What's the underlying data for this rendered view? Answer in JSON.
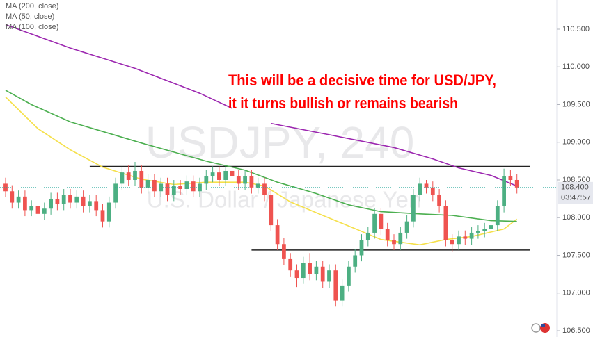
{
  "chart_data": {
    "type": "candlestick",
    "watermark_title": "USDJPY, 240",
    "watermark_subtitle": "U.S. Dollar / Japanese Yen",
    "annotation": [
      "This will be a decisive time for USD/JPY,",
      "it it turns bullish or remains bearish"
    ],
    "ylim": [
      106.417,
      110.887
    ],
    "yticks": [
      {
        "value": 106.5,
        "label": "106.500"
      },
      {
        "value": 107.0,
        "label": "107.000"
      },
      {
        "value": 107.5,
        "label": "107.500"
      },
      {
        "value": 108.0,
        "label": "108.000"
      },
      {
        "value": 108.5,
        "label": "108.500"
      },
      {
        "value": 109.0,
        "label": "109.000"
      },
      {
        "value": 109.5,
        "label": "109.500"
      },
      {
        "value": 110.0,
        "label": "110.000"
      },
      {
        "value": 110.5,
        "label": "110.500"
      }
    ],
    "grid": false,
    "up_color": "#4caf82",
    "down_color": "#ef5350",
    "candles": {
      "open": [
        108.45,
        108.35,
        108.2,
        108.28,
        108.1,
        108.15,
        108.05,
        108.12,
        108.25,
        108.18,
        108.3,
        108.2,
        108.28,
        108.15,
        108.22,
        108.1,
        107.95,
        108.2,
        108.45,
        108.6,
        108.5,
        108.62,
        108.4,
        108.5,
        108.35,
        108.45,
        108.3,
        108.42,
        108.38,
        108.48,
        108.35,
        108.45,
        108.55,
        108.6,
        108.5,
        108.62,
        108.55,
        108.45,
        108.55,
        108.4,
        108.45,
        108.3,
        107.9,
        107.65,
        107.45,
        107.3,
        107.2,
        107.4,
        107.25,
        107.35,
        107.15,
        107.3,
        106.9,
        107.1,
        107.35,
        107.5,
        107.7,
        107.8,
        108.05,
        107.85,
        107.7,
        107.65,
        107.8,
        107.95,
        108.3,
        108.45,
        108.4,
        108.3,
        108.15,
        107.7,
        107.65,
        107.75,
        107.72,
        107.8,
        107.82,
        107.85,
        107.9,
        108.15,
        108.55,
        108.5
      ],
      "high": [
        108.53,
        108.43,
        108.36,
        108.36,
        108.23,
        108.23,
        108.2,
        108.33,
        108.33,
        108.38,
        108.38,
        108.36,
        108.36,
        108.3,
        108.3,
        108.18,
        108.28,
        108.53,
        108.68,
        108.7,
        108.74,
        108.7,
        108.58,
        108.58,
        108.53,
        108.53,
        108.5,
        108.5,
        108.56,
        108.56,
        108.53,
        108.63,
        108.68,
        108.68,
        108.7,
        108.7,
        108.63,
        108.63,
        108.63,
        108.53,
        108.53,
        108.38,
        107.98,
        107.73,
        107.53,
        107.38,
        107.48,
        107.53,
        107.43,
        107.43,
        107.38,
        107.38,
        107.18,
        107.43,
        107.58,
        107.78,
        107.88,
        108.13,
        108.13,
        107.93,
        107.78,
        107.88,
        108.03,
        108.38,
        108.53,
        108.5,
        108.48,
        108.38,
        108.23,
        107.78,
        107.83,
        107.83,
        107.88,
        107.9,
        107.93,
        107.98,
        108.23,
        108.65,
        108.63,
        108.58
      ],
      "low": [
        108.27,
        108.12,
        108.12,
        108.02,
        108.02,
        107.97,
        107.97,
        108.04,
        108.1,
        108.1,
        108.12,
        108.12,
        108.07,
        108.07,
        108.02,
        107.87,
        107.87,
        108.12,
        108.37,
        108.42,
        108.42,
        108.32,
        108.32,
        108.27,
        108.27,
        108.22,
        108.22,
        108.3,
        108.3,
        108.27,
        108.27,
        108.37,
        108.47,
        108.42,
        108.42,
        108.47,
        108.37,
        108.37,
        108.32,
        108.32,
        108.22,
        107.82,
        107.57,
        107.37,
        107.22,
        107.08,
        107.12,
        107.17,
        107.17,
        107.07,
        107.07,
        106.82,
        106.82,
        107.02,
        107.27,
        107.42,
        107.62,
        107.72,
        107.77,
        107.62,
        107.57,
        107.57,
        107.72,
        107.87,
        108.22,
        108.32,
        108.22,
        108.07,
        107.62,
        107.55,
        107.57,
        107.64,
        107.64,
        107.72,
        107.74,
        107.77,
        107.82,
        108.07,
        108.42,
        108.32
      ],
      "close": [
        108.35,
        108.2,
        108.28,
        108.1,
        108.15,
        108.05,
        108.12,
        108.25,
        108.18,
        108.3,
        108.2,
        108.28,
        108.15,
        108.22,
        108.1,
        107.95,
        108.2,
        108.45,
        108.6,
        108.5,
        108.62,
        108.4,
        108.5,
        108.35,
        108.45,
        108.3,
        108.42,
        108.38,
        108.48,
        108.35,
        108.45,
        108.55,
        108.6,
        108.5,
        108.62,
        108.55,
        108.45,
        108.55,
        108.4,
        108.45,
        108.3,
        107.9,
        107.65,
        107.45,
        107.3,
        107.2,
        107.4,
        107.25,
        107.35,
        107.15,
        107.3,
        106.9,
        107.1,
        107.35,
        107.5,
        107.7,
        107.8,
        108.05,
        107.85,
        107.7,
        107.65,
        107.8,
        107.95,
        108.3,
        108.45,
        108.4,
        108.3,
        108.15,
        107.7,
        107.65,
        107.75,
        107.72,
        107.8,
        107.82,
        107.85,
        107.9,
        108.15,
        108.55,
        108.5,
        108.4
      ]
    },
    "lines": [
      {
        "name": "MA (200, close)",
        "color": "#9c27b0",
        "x": [
          0,
          10,
          20,
          30,
          35,
          37,
          41,
          50,
          60,
          66,
          70,
          75,
          79
        ],
        "values": [
          110.56,
          110.25,
          109.98,
          109.65,
          109.45,
          null,
          109.25,
          109.1,
          108.93,
          108.78,
          108.66,
          108.56,
          108.42
        ]
      },
      {
        "name": "MA (50, close)",
        "color": "#f5e04a",
        "x": [
          0,
          5,
          10,
          15,
          21,
          26,
          31,
          37,
          40,
          44,
          49,
          53,
          58,
          64,
          68,
          72,
          77,
          79
        ],
        "values": [
          109.6,
          109.18,
          108.9,
          108.67,
          108.51,
          108.44,
          108.47,
          108.47,
          108.42,
          108.21,
          108.03,
          107.89,
          107.71,
          107.64,
          107.71,
          107.75,
          107.85,
          107.98
        ]
      },
      {
        "name": "MA (100, close)",
        "color": "#4caf50",
        "x": [
          0,
          4,
          10,
          21,
          31,
          37,
          42,
          48,
          53,
          58,
          64,
          69,
          75,
          79
        ],
        "values": [
          109.69,
          109.5,
          109.27,
          108.99,
          108.75,
          108.63,
          108.47,
          108.32,
          108.17,
          108.08,
          108.05,
          108.03,
          107.96,
          107.95
        ]
      }
    ],
    "levels": [
      {
        "value": 108.68,
        "x": [
          13,
          81
        ]
      },
      {
        "value": 107.57,
        "x": [
          38,
          81
        ]
      }
    ],
    "last_price": {
      "value": 108.4,
      "label": "108.400"
    },
    "countdown": "03:47:57"
  }
}
